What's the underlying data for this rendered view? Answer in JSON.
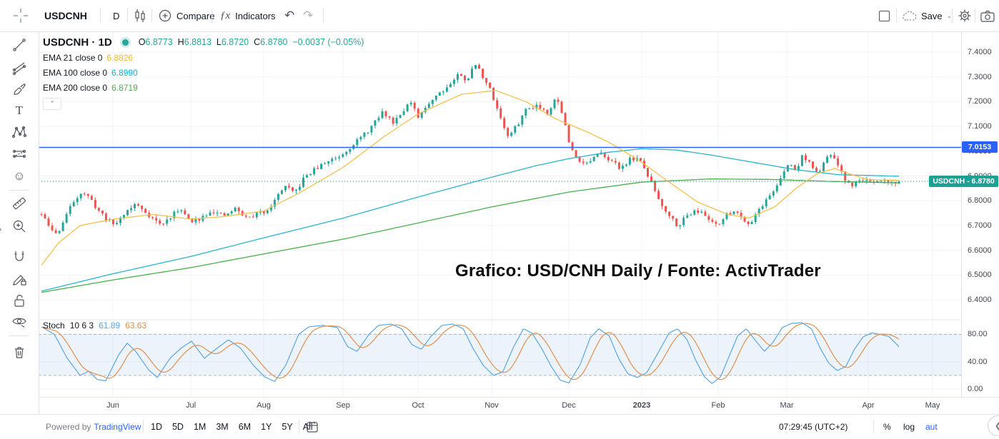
{
  "toolbar_top": {
    "symbol": "USDCNH",
    "interval": "D",
    "compare_label": "Compare",
    "indicators_label": "Indicators",
    "fx_glyph": "ƒx",
    "undo_glyph": "↶",
    "redo_glyph": "↷",
    "save_label": "Save"
  },
  "legend": {
    "title": "USDCNH · 1D",
    "ohlc_tokens": [
      {
        "k": "O",
        "v": "6.8773"
      },
      {
        "k": "H",
        "v": "6.8813"
      },
      {
        "k": "L",
        "v": "6.8720"
      },
      {
        "k": "C",
        "v": "6.8780"
      }
    ],
    "change": "−0.0037 (−0.05%)",
    "emas": [
      {
        "label": "EMA 21 close 0",
        "value": "6.8826",
        "color": "#e8b93c"
      },
      {
        "label": "EMA 100 close 0",
        "value": "6.8990",
        "color": "#00b7d8"
      },
      {
        "label": "EMA 200 close 0",
        "value": "6.8719",
        "color": "#4caf50"
      }
    ],
    "collapse_glyph": "⌃"
  },
  "annotation": "Grafico: USD/CNH Daily / Fonte: ActivTrader",
  "stoch": {
    "name": "Stoch",
    "params": "10 6 3",
    "k_value": "61.89",
    "d_value": "63.63",
    "k_color": "#5ca6e0",
    "d_color": "#e0904f"
  },
  "toolbar_bottom": {
    "powered": "Powered by",
    "brand": "TradingView",
    "ranges": [
      "1D",
      "5D",
      "1M",
      "3M",
      "6M",
      "1Y",
      "5Y",
      "All"
    ],
    "clock": "07:29:45 (UTC+2)",
    "percent": "%",
    "log": "log",
    "auto": "aut",
    "chevron": "❮"
  },
  "chart_data": {
    "type": "candlestick",
    "symbol": "USDCNH",
    "timeframe": "1D",
    "candle_count": 240,
    "last_close": 6.878,
    "ylim": [
      6.33,
      7.48
    ],
    "y_ticks": [
      7.4,
      7.3,
      7.2,
      7.1,
      7.0,
      6.9,
      6.8,
      6.7,
      6.6,
      6.5,
      6.4
    ],
    "y_tick_labels": [
      "7.4000",
      "7.3000",
      "7.2000",
      "7.1000",
      "7.0000",
      "6.9000",
      "6.8000",
      "6.7000",
      "6.6000",
      "6.5000",
      "6.4000"
    ],
    "stoch_ticks": [
      80,
      40,
      0
    ],
    "stoch_tick_labels": [
      "80.00",
      "40.00",
      "0.00"
    ],
    "months": [
      {
        "label": "Jun",
        "t": 0.0833
      },
      {
        "label": "Jul",
        "t": 0.1742
      },
      {
        "label": "Aug",
        "t": 0.2592
      },
      {
        "label": "Sep",
        "t": 0.3517
      },
      {
        "label": "Oct",
        "t": 0.4392
      },
      {
        "label": "Nov",
        "t": 0.525
      },
      {
        "label": "Dec",
        "t": 0.615
      },
      {
        "label": "2023",
        "t": 0.7,
        "bold": true
      },
      {
        "label": "Feb",
        "t": 0.7892
      },
      {
        "label": "Mar",
        "t": 0.8692
      },
      {
        "label": "Apr",
        "t": 0.9642
      },
      {
        "label": "May",
        "t": 1.0392
      }
    ],
    "levels": [
      {
        "value": 7.0153,
        "label": "7.0153",
        "color": "#2962ff",
        "style": "solid"
      },
      {
        "value": 6.878,
        "label": "USDCNH - 6.8780",
        "color": "#1ea195",
        "style": "dashed"
      }
    ],
    "colors": {
      "up": "#26a69a",
      "down": "#ef5350",
      "ema21": "#f2c14e",
      "ema100": "#2ab5c9",
      "ema200": "#4caf50"
    },
    "price_path": [
      [
        0,
        6.745
      ],
      [
        0.01,
        6.69
      ],
      [
        0.018,
        6.662
      ],
      [
        0.03,
        6.75
      ],
      [
        0.04,
        6.812
      ],
      [
        0.048,
        6.838
      ],
      [
        0.058,
        6.8
      ],
      [
        0.068,
        6.755
      ],
      [
        0.078,
        6.72
      ],
      [
        0.086,
        6.703
      ],
      [
        0.095,
        6.745
      ],
      [
        0.11,
        6.787
      ],
      [
        0.125,
        6.744
      ],
      [
        0.14,
        6.7
      ],
      [
        0.152,
        6.74
      ],
      [
        0.163,
        6.77
      ],
      [
        0.174,
        6.708
      ],
      [
        0.185,
        6.73
      ],
      [
        0.198,
        6.762
      ],
      [
        0.212,
        6.735
      ],
      [
        0.226,
        6.768
      ],
      [
        0.24,
        6.728
      ],
      [
        0.252,
        6.748
      ],
      [
        0.262,
        6.76
      ],
      [
        0.272,
        6.8
      ],
      [
        0.283,
        6.862
      ],
      [
        0.295,
        6.828
      ],
      [
        0.308,
        6.9
      ],
      [
        0.32,
        6.928
      ],
      [
        0.335,
        6.962
      ],
      [
        0.35,
        6.986
      ],
      [
        0.363,
        7.028
      ],
      [
        0.377,
        7.068
      ],
      [
        0.388,
        7.112
      ],
      [
        0.398,
        7.158
      ],
      [
        0.41,
        7.118
      ],
      [
        0.42,
        7.16
      ],
      [
        0.43,
        7.198
      ],
      [
        0.44,
        7.13
      ],
      [
        0.45,
        7.19
      ],
      [
        0.462,
        7.232
      ],
      [
        0.474,
        7.262
      ],
      [
        0.486,
        7.31
      ],
      [
        0.496,
        7.288
      ],
      [
        0.506,
        7.352
      ],
      [
        0.514,
        7.308
      ],
      [
        0.524,
        7.242
      ],
      [
        0.534,
        7.15
      ],
      [
        0.544,
        7.058
      ],
      [
        0.554,
        7.1
      ],
      [
        0.565,
        7.168
      ],
      [
        0.578,
        7.188
      ],
      [
        0.59,
        7.155
      ],
      [
        0.6,
        7.22
      ],
      [
        0.608,
        7.148
      ],
      [
        0.616,
        7.018
      ],
      [
        0.625,
        6.972
      ],
      [
        0.635,
        6.948
      ],
      [
        0.645,
        6.974
      ],
      [
        0.655,
        6.992
      ],
      [
        0.665,
        6.958
      ],
      [
        0.675,
        6.932
      ],
      [
        0.685,
        6.964
      ],
      [
        0.695,
        6.974
      ],
      [
        0.703,
        6.93
      ],
      [
        0.712,
        6.868
      ],
      [
        0.722,
        6.79
      ],
      [
        0.732,
        6.744
      ],
      [
        0.742,
        6.7
      ],
      [
        0.752,
        6.736
      ],
      [
        0.762,
        6.766
      ],
      [
        0.772,
        6.744
      ],
      [
        0.78,
        6.72
      ],
      [
        0.79,
        6.708
      ],
      [
        0.8,
        6.744
      ],
      [
        0.808,
        6.762
      ],
      [
        0.818,
        6.73
      ],
      [
        0.826,
        6.704
      ],
      [
        0.835,
        6.76
      ],
      [
        0.845,
        6.8
      ],
      [
        0.855,
        6.848
      ],
      [
        0.864,
        6.9
      ],
      [
        0.872,
        6.953
      ],
      [
        0.88,
        6.92
      ],
      [
        0.888,
        6.986
      ],
      [
        0.896,
        6.952
      ],
      [
        0.904,
        6.91
      ],
      [
        0.912,
        6.944
      ],
      [
        0.92,
        6.992
      ],
      [
        0.928,
        6.948
      ],
      [
        0.936,
        6.888
      ],
      [
        0.944,
        6.862
      ],
      [
        0.952,
        6.876
      ],
      [
        0.96,
        6.89
      ],
      [
        0.968,
        6.864
      ],
      [
        0.976,
        6.874
      ],
      [
        0.984,
        6.882
      ],
      [
        0.992,
        6.872
      ],
      [
        1,
        6.878
      ]
    ],
    "ema21": [
      [
        0,
        6.54
      ],
      [
        0.02,
        6.63
      ],
      [
        0.045,
        6.7
      ],
      [
        0.083,
        6.725
      ],
      [
        0.13,
        6.745
      ],
      [
        0.174,
        6.726
      ],
      [
        0.21,
        6.735
      ],
      [
        0.259,
        6.758
      ],
      [
        0.3,
        6.83
      ],
      [
        0.352,
        6.935
      ],
      [
        0.4,
        7.06
      ],
      [
        0.439,
        7.15
      ],
      [
        0.49,
        7.23
      ],
      [
        0.53,
        7.245
      ],
      [
        0.565,
        7.2
      ],
      [
        0.6,
        7.13
      ],
      [
        0.635,
        7.08
      ],
      [
        0.665,
        7.03
      ],
      [
        0.7,
        6.955
      ],
      [
        0.73,
        6.88
      ],
      [
        0.765,
        6.795
      ],
      [
        0.8,
        6.745
      ],
      [
        0.825,
        6.73
      ],
      [
        0.855,
        6.775
      ],
      [
        0.88,
        6.85
      ],
      [
        0.905,
        6.91
      ],
      [
        0.925,
        6.93
      ],
      [
        0.945,
        6.905
      ],
      [
        0.965,
        6.885
      ],
      [
        1,
        6.8826
      ]
    ],
    "ema100": [
      [
        0,
        6.435
      ],
      [
        0.083,
        6.505
      ],
      [
        0.174,
        6.575
      ],
      [
        0.259,
        6.65
      ],
      [
        0.352,
        6.73
      ],
      [
        0.439,
        6.815
      ],
      [
        0.525,
        6.895
      ],
      [
        0.575,
        6.94
      ],
      [
        0.615,
        6.97
      ],
      [
        0.66,
        6.995
      ],
      [
        0.7,
        7.01
      ],
      [
        0.74,
        7.005
      ],
      [
        0.78,
        6.985
      ],
      [
        0.83,
        6.955
      ],
      [
        0.88,
        6.925
      ],
      [
        0.93,
        6.905
      ],
      [
        1,
        6.899
      ]
    ],
    "ema200": [
      [
        0,
        6.43
      ],
      [
        0.083,
        6.48
      ],
      [
        0.174,
        6.53
      ],
      [
        0.259,
        6.585
      ],
      [
        0.352,
        6.645
      ],
      [
        0.439,
        6.71
      ],
      [
        0.525,
        6.775
      ],
      [
        0.615,
        6.835
      ],
      [
        0.7,
        6.875
      ],
      [
        0.78,
        6.888
      ],
      [
        0.85,
        6.886
      ],
      [
        0.92,
        6.878
      ],
      [
        1,
        6.872
      ]
    ],
    "stoch_k": [
      [
        0,
        91
      ],
      [
        0.015,
        80
      ],
      [
        0.03,
        45
      ],
      [
        0.045,
        20
      ],
      [
        0.055,
        26
      ],
      [
        0.065,
        14
      ],
      [
        0.075,
        12
      ],
      [
        0.09,
        50
      ],
      [
        0.1,
        67
      ],
      [
        0.11,
        55
      ],
      [
        0.125,
        28
      ],
      [
        0.135,
        17
      ],
      [
        0.15,
        45
      ],
      [
        0.163,
        60
      ],
      [
        0.175,
        70
      ],
      [
        0.19,
        45
      ],
      [
        0.203,
        58
      ],
      [
        0.218,
        72
      ],
      [
        0.232,
        60
      ],
      [
        0.247,
        35
      ],
      [
        0.26,
        18
      ],
      [
        0.272,
        11
      ],
      [
        0.285,
        35
      ],
      [
        0.3,
        80
      ],
      [
        0.312,
        91
      ],
      [
        0.328,
        93
      ],
      [
        0.345,
        90
      ],
      [
        0.357,
        62
      ],
      [
        0.368,
        55
      ],
      [
        0.382,
        80
      ],
      [
        0.393,
        93
      ],
      [
        0.408,
        95
      ],
      [
        0.42,
        88
      ],
      [
        0.432,
        65
      ],
      [
        0.443,
        58
      ],
      [
        0.455,
        78
      ],
      [
        0.467,
        93
      ],
      [
        0.48,
        95
      ],
      [
        0.492,
        88
      ],
      [
        0.503,
        60
      ],
      [
        0.515,
        35
      ],
      [
        0.527,
        20
      ],
      [
        0.538,
        25
      ],
      [
        0.55,
        60
      ],
      [
        0.562,
        88
      ],
      [
        0.572,
        82
      ],
      [
        0.583,
        60
      ],
      [
        0.595,
        32
      ],
      [
        0.605,
        13
      ],
      [
        0.615,
        9
      ],
      [
        0.628,
        35
      ],
      [
        0.64,
        75
      ],
      [
        0.65,
        88
      ],
      [
        0.662,
        78
      ],
      [
        0.673,
        45
      ],
      [
        0.684,
        22
      ],
      [
        0.695,
        17
      ],
      [
        0.706,
        24
      ],
      [
        0.72,
        55
      ],
      [
        0.732,
        82
      ],
      [
        0.742,
        88
      ],
      [
        0.753,
        72
      ],
      [
        0.763,
        42
      ],
      [
        0.773,
        18
      ],
      [
        0.782,
        8
      ],
      [
        0.792,
        18
      ],
      [
        0.802,
        48
      ],
      [
        0.812,
        78
      ],
      [
        0.822,
        88
      ],
      [
        0.832,
        72
      ],
      [
        0.843,
        55
      ],
      [
        0.853,
        68
      ],
      [
        0.864,
        90
      ],
      [
        0.875,
        96
      ],
      [
        0.887,
        97
      ],
      [
        0.898,
        88
      ],
      [
        0.908,
        60
      ],
      [
        0.918,
        38
      ],
      [
        0.928,
        27
      ],
      [
        0.938,
        33
      ],
      [
        0.948,
        58
      ],
      [
        0.958,
        76
      ],
      [
        0.968,
        82
      ],
      [
        0.978,
        80
      ],
      [
        0.988,
        77
      ],
      [
        1,
        62
      ]
    ]
  }
}
